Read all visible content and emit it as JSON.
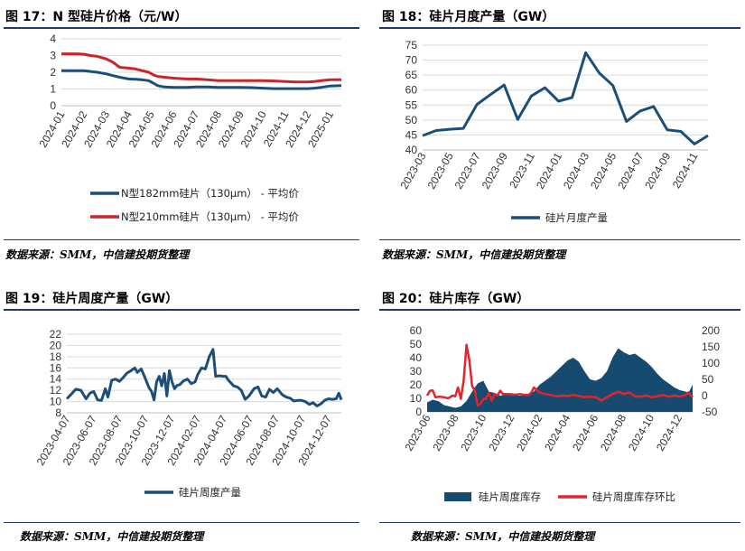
{
  "panels": [
    {
      "title": "图 17：N 型硅片价格（元/W）",
      "source": "数据来源：SMM，中信建投期货整理"
    },
    {
      "title": "图 18：硅片月度产量（GW）",
      "source": "数据来源：SMM，中信建投期货整理"
    },
    {
      "title": "图 19：硅片周度产量（GW）",
      "source": "数据来源：SMM，中信建投期货整理"
    },
    {
      "title": "图 20：硅片库存（GW）",
      "source": "数据来源：SMM，中信建投期货整理"
    }
  ],
  "chart_data": [
    {
      "type": "line",
      "xlabels": [
        "2024-01",
        "2024-02",
        "2024-03",
        "2024-04",
        "2024-05",
        "2024-06",
        "2024-07",
        "2024-08",
        "2024-09",
        "2024-10",
        "2024-11",
        "2024-12",
        "2025-01"
      ],
      "yticks": [
        0,
        1,
        2,
        3,
        4
      ],
      "ylim": [
        0,
        4
      ],
      "legend_position": "bottom",
      "series": [
        {
          "name": "N型182mm硅片（130μm） - 平均价",
          "color": "#1b4f7a",
          "x": [
            0,
            0.2,
            0.5,
            1,
            1.3,
            1.6,
            2,
            2.3,
            2.6,
            3,
            3.3,
            3.6,
            3.9,
            4.1,
            4.3,
            4.6,
            5,
            5.3,
            5.6,
            6,
            6.5,
            7,
            7.5,
            8,
            8.5,
            9,
            9.5,
            10,
            10.5,
            11,
            11.3,
            11.6,
            12,
            12.5
          ],
          "y": [
            2.1,
            2.1,
            2.1,
            2.1,
            2.05,
            2.0,
            1.9,
            1.8,
            1.7,
            1.6,
            1.58,
            1.55,
            1.5,
            1.35,
            1.2,
            1.12,
            1.1,
            1.1,
            1.1,
            1.12,
            1.12,
            1.1,
            1.1,
            1.1,
            1.08,
            1.05,
            1.02,
            1.02,
            1.02,
            1.02,
            1.05,
            1.1,
            1.18,
            1.2
          ]
        },
        {
          "name": "N型210mm硅片（130μm） - 平均价",
          "color": "#c9262c",
          "x": [
            0,
            0.3,
            0.7,
            1,
            1.3,
            1.6,
            2,
            2.3,
            2.6,
            3,
            3.3,
            3.6,
            3.9,
            4.1,
            4.3,
            4.6,
            5,
            5.3,
            5.6,
            6,
            6.5,
            7,
            7.5,
            8,
            8.5,
            9,
            9.5,
            10,
            10.5,
            11,
            11.3,
            11.6,
            12,
            12.5
          ],
          "y": [
            3.1,
            3.1,
            3.1,
            3.08,
            3.0,
            2.95,
            2.8,
            2.6,
            2.3,
            2.25,
            2.2,
            2.1,
            2.0,
            1.85,
            1.75,
            1.7,
            1.65,
            1.62,
            1.6,
            1.6,
            1.55,
            1.5,
            1.5,
            1.5,
            1.5,
            1.5,
            1.48,
            1.45,
            1.42,
            1.42,
            1.45,
            1.5,
            1.55,
            1.55
          ]
        }
      ]
    },
    {
      "type": "line",
      "xlabels": [
        "2023-03",
        "2023-05",
        "2023-07",
        "2023-09",
        "2023-11",
        "2024-01",
        "2024-03",
        "2024-05",
        "2024-07",
        "2024-09",
        "2024-11"
      ],
      "yticks": [
        40,
        45,
        50,
        55,
        60,
        65,
        70,
        75
      ],
      "ylim": [
        40,
        75
      ],
      "legend_position": "bottom",
      "series": [
        {
          "name": "硅片月度产量",
          "color": "#1b4f7a",
          "x": [
            0,
            1,
            2,
            3,
            4,
            5,
            6,
            7,
            8,
            9,
            10,
            11,
            12,
            13,
            14,
            15,
            16,
            17,
            18,
            19,
            20,
            21
          ],
          "y": [
            44.8,
            46.5,
            46.9,
            47.2,
            55.2,
            58.5,
            61.7,
            50.2,
            58.0,
            60.8,
            56.3,
            57.5,
            72.5,
            65.7,
            61.5,
            49.5,
            53.0,
            54.5,
            46.7,
            46.2,
            42.0,
            44.8
          ]
        }
      ]
    },
    {
      "type": "line",
      "xlabels": [
        "2023-04-07",
        "2023-06-07",
        "2023-08-07",
        "2023-10-07",
        "2023-12-07",
        "2024-02-07",
        "2024-04-07",
        "2024-06-07",
        "2024-08-07",
        "2024-10-07",
        "2024-12-07"
      ],
      "yticks": [
        8,
        10,
        12,
        14,
        16,
        18,
        20,
        22
      ],
      "ylim": [
        8,
        22
      ],
      "legend_position": "bottom",
      "series": [
        {
          "name": "硅片周度产量",
          "color": "#1b4f7a",
          "x": [
            0,
            0.15,
            0.35,
            0.55,
            0.75,
            0.9,
            1.05,
            1.2,
            1.35,
            1.5,
            1.6,
            1.75,
            1.9,
            2.05,
            2.2,
            2.35,
            2.5,
            2.65,
            2.75,
            2.9,
            3.05,
            3.2,
            3.3,
            3.4,
            3.5,
            3.6,
            3.7,
            3.8,
            3.9,
            4.0,
            4.1,
            4.2,
            4.3,
            4.4,
            4.55,
            4.7,
            4.85,
            5.0,
            5.1,
            5.25,
            5.4,
            5.55,
            5.7,
            5.8,
            5.95,
            6.1,
            6.2,
            6.3,
            6.5,
            6.65,
            6.8,
            6.95,
            7.1,
            7.3,
            7.45,
            7.6,
            7.75,
            7.9,
            8.05,
            8.2,
            8.4,
            8.55,
            8.7,
            8.85,
            9.0,
            9.15,
            9.3,
            9.45,
            9.6,
            9.75,
            9.9,
            10.05,
            10.2,
            10.35,
            10.5,
            10.6,
            10.7
          ],
          "y": [
            10.5,
            11.2,
            12.2,
            12.0,
            10.5,
            11.5,
            11.8,
            10.3,
            10.2,
            12.3,
            10.8,
            13.8,
            14.0,
            13.6,
            14.3,
            15.1,
            15.5,
            16.0,
            15.2,
            15.8,
            14.2,
            12.5,
            11.8,
            10.3,
            13.5,
            14.5,
            12.8,
            15.0,
            11.0,
            15.5,
            13.5,
            12.3,
            12.9,
            13.0,
            13.7,
            14.0,
            13.2,
            13.5,
            14.8,
            16.0,
            15.8,
            18.0,
            19.3,
            14.5,
            14.6,
            14.5,
            14.5,
            13.8,
            12.8,
            12.6,
            12.0,
            10.4,
            11.0,
            12.3,
            12.6,
            11.0,
            10.8,
            12.2,
            11.6,
            12.3,
            11.2,
            10.8,
            10.6,
            10.1,
            10.2,
            10.2,
            10.0,
            9.5,
            9.8,
            9.2,
            9.6,
            10.2,
            10.5,
            10.4,
            10.5,
            11.5,
            10.3
          ]
        }
      ]
    },
    {
      "type": "area",
      "xlabels": [
        "2023-06",
        "2023-08",
        "2023-10",
        "2023-12",
        "2024-02",
        "2024-04",
        "2024-06",
        "2024-08",
        "2024-10",
        "2024-12"
      ],
      "yticks_left": [
        0,
        10,
        20,
        30,
        40,
        50,
        60
      ],
      "ylim_left": [
        0,
        60
      ],
      "yticks_right": [
        -50,
        0,
        50,
        100,
        150,
        200
      ],
      "ylim_right": [
        -50,
        200
      ],
      "legend_position": "bottom",
      "series": [
        {
          "name": "硅片周度库存",
          "color": "#174a70",
          "axis": "left",
          "x": [
            0,
            0.2,
            0.4,
            0.6,
            0.8,
            1.0,
            1.2,
            1.4,
            1.6,
            1.8,
            2.0,
            2.2,
            2.4,
            2.6,
            2.8,
            3.0,
            3.2,
            3.4,
            3.6,
            3.8,
            4.0,
            4.2,
            4.4,
            4.6,
            4.8,
            5.0,
            5.2,
            5.4,
            5.6,
            5.8,
            6.0,
            6.2,
            6.4,
            6.6,
            6.8,
            7.0,
            7.2,
            7.4,
            7.6,
            7.8,
            8.0,
            8.2,
            8.4,
            8.6,
            8.8,
            9.0,
            9.2,
            9.3,
            9.45
          ],
          "y": [
            7,
            9,
            8,
            5,
            4,
            3,
            4,
            8,
            15,
            21,
            23,
            15,
            14,
            12,
            13,
            14,
            12,
            12,
            13,
            15,
            20,
            23,
            26,
            30,
            34,
            38,
            40,
            37,
            30,
            24,
            23,
            25,
            30,
            40,
            47,
            44,
            42,
            43,
            40,
            37,
            33,
            28,
            24,
            21,
            18,
            16,
            15,
            14,
            20
          ]
        },
        {
          "name": "硅片周度库存环比",
          "color": "#e3242b",
          "axis": "right",
          "x": [
            0,
            0.1,
            0.2,
            0.3,
            0.45,
            0.6,
            0.75,
            0.9,
            1.0,
            1.1,
            1.2,
            1.3,
            1.4,
            1.5,
            1.6,
            1.7,
            1.8,
            1.9,
            2.0,
            2.1,
            2.2,
            2.3,
            2.4,
            2.5,
            2.6,
            2.7,
            2.8,
            2.9,
            3.0,
            3.1,
            3.2,
            3.3,
            3.4,
            3.5,
            3.6,
            3.7,
            3.8,
            4.0,
            4.2,
            4.4,
            4.6,
            4.8,
            5.0,
            5.2,
            5.4,
            5.6,
            5.8,
            6.0,
            6.2,
            6.4,
            6.6,
            6.8,
            7.0,
            7.2,
            7.4,
            7.6,
            7.8,
            8.0,
            8.2,
            8.4,
            8.6,
            8.8,
            9.0,
            9.2,
            9.3,
            9.45
          ],
          "y": [
            0,
            15,
            16,
            -5,
            -3,
            -5,
            -8,
            0,
            -2,
            25,
            -10,
            45,
            156,
            110,
            30,
            15,
            -30,
            -25,
            -10,
            -10,
            8,
            -15,
            5,
            0,
            15,
            5,
            5,
            5,
            3,
            3,
            3,
            5,
            3,
            2,
            2,
            8,
            25,
            10,
            5,
            2,
            -2,
            0,
            -1,
            2,
            -1,
            -5,
            -3,
            -5,
            -15,
            -5,
            5,
            12,
            5,
            10,
            -2,
            -3,
            0,
            -5,
            -2,
            2,
            -3,
            0,
            -3,
            2,
            10,
            -5
          ]
        }
      ]
    }
  ]
}
